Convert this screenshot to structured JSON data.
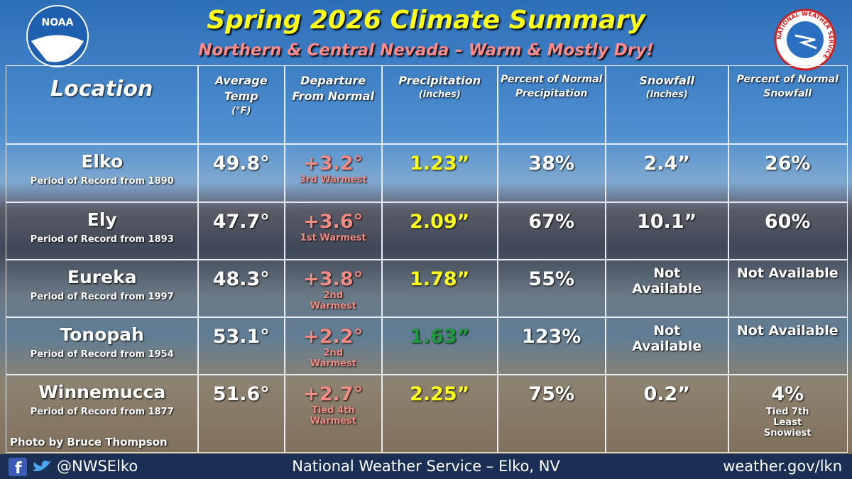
{
  "header": {
    "title": "Spring 2026 Climate Summary",
    "subtitle": "Northern & Central Nevada – Warm & Mostly Dry!",
    "noaa_logo": "NOAA",
    "nws_logo": "NATIONAL WEATHER SERVICE"
  },
  "table": {
    "columns": [
      {
        "main": "Location"
      },
      {
        "main": "Average Temp",
        "unit": "(°F)"
      },
      {
        "main": "Departure From Normal"
      },
      {
        "main": "Precipitation",
        "unit": "(inches)"
      },
      {
        "main": "Percent of Normal Precipitation"
      },
      {
        "main": "Snowfall",
        "unit": "(inches)"
      },
      {
        "main": "Percent of Normal Snowfall"
      }
    ],
    "rows": [
      {
        "location": "Elko",
        "record": "Period of Record from 1890",
        "temp": "49.8°",
        "departure": "+3.2°",
        "rank": "3rd Warmest",
        "precip": "1.23”",
        "precip_color": "#ffff1a",
        "pct_precip": "38%",
        "snow": "2.4”",
        "pct_snow": "26%"
      },
      {
        "location": "Ely",
        "record": "Period of Record from 1893",
        "temp": "47.7°",
        "departure": "+3.6°",
        "rank": "1st Warmest",
        "precip": "2.09”",
        "precip_color": "#ffff1a",
        "pct_precip": "67%",
        "snow": "10.1”",
        "pct_snow": "60%"
      },
      {
        "location": "Eureka",
        "record": "Period of Record from 1997",
        "temp": "48.3°",
        "departure": "+3.8°",
        "rank": "2nd Warmest",
        "precip": "1.78”",
        "precip_color": "#ffff1a",
        "pct_precip": "55%",
        "snow": "Not Available",
        "pct_snow": "Not Available"
      },
      {
        "location": "Tonopah",
        "record": "Period of Record from 1954",
        "temp": "53.1°",
        "departure": "+2.2°",
        "rank": "2nd Warmest",
        "precip": "1.63”",
        "precip_color": "#1f9a3e",
        "pct_precip": "123%",
        "snow": "Not Available",
        "pct_snow": "Not Available"
      },
      {
        "location": "Winnemucca",
        "record": "Period of Record from 1877",
        "temp": "51.6°",
        "departure": "+2.7°",
        "rank": "Tied 4th Warmest",
        "precip": "2.25”",
        "precip_color": "#ffff1a",
        "pct_precip": "75%",
        "snow": "0.2”",
        "pct_snow": "4%",
        "snow_note": "Tied 7th Least Snowiest"
      }
    ]
  },
  "photo_credit": "Photo by Bruce Thompson",
  "footer": {
    "handle": "@NWSElko",
    "center": "National Weather Service – Elko, NV",
    "url": "weather.gov/lkn"
  }
}
